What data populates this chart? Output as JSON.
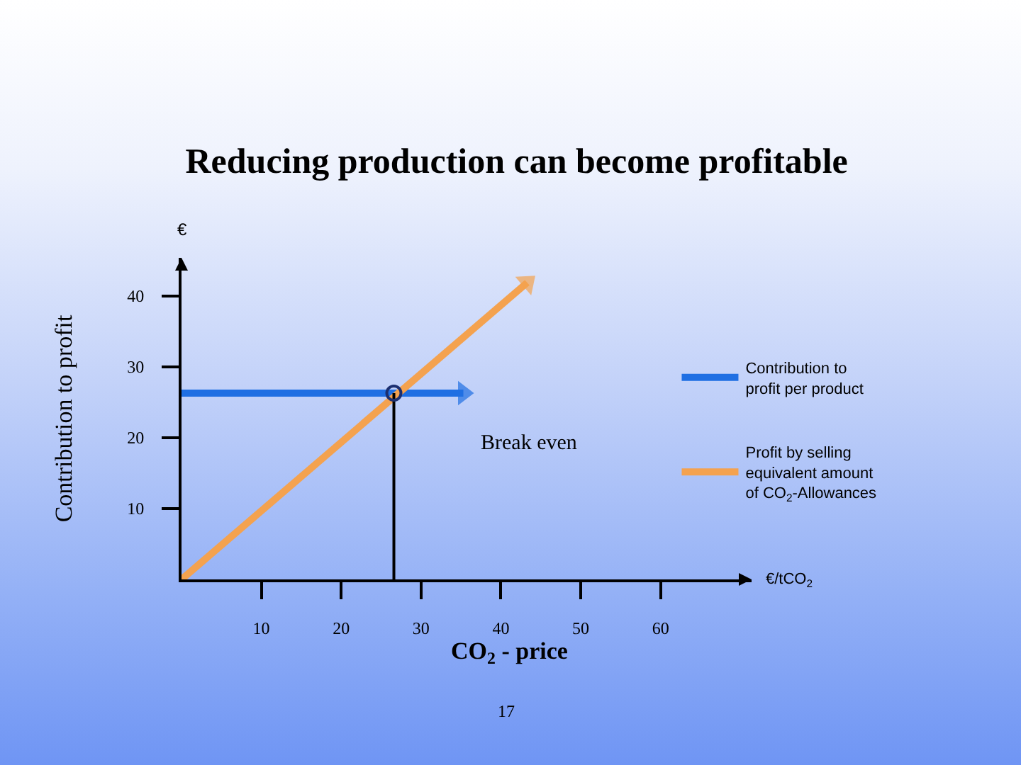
{
  "chart_data": {
    "type": "line",
    "title": "Reducing production can become profitable",
    "xlabel": "CO$_{2}$ - price",
    "ylabel": "Contribution to profit",
    "annotations": [
      "€",
      "€/tCO$_{2}$",
      "Break even",
      "17"
    ],
    "xlim": [
      0,
      71.4
    ],
    "xticks": [
      10,
      20,
      30,
      40,
      50,
      60
    ],
    "ylim": [
      0,
      45.4
    ],
    "yticks": [
      10,
      20,
      30,
      40
    ],
    "grid": false,
    "legend": "right",
    "series": [
      {
        "name": "Contribution to profit per product",
        "color": "#1f6fe3",
        "x": [
          0,
          35.3
        ],
        "values": [
          26.3,
          26.3
        ]
      },
      {
        "name": "Profit by selling equivalent amount of CO$_{2}$-Allowances",
        "color": "#f4a24f",
        "x": [
          0,
          43.3
        ],
        "values": [
          0,
          41.9
        ]
      },
      {
        "color": "#000000",
        "x": [
          26.6,
          26.6
        ],
        "values": [
          0,
          26.3
        ]
      },
      {
        "type": "scatter",
        "color": "#1c2f70",
        "x": [
          26.6
        ],
        "values": [
          26.3
        ],
        "marker": "circle"
      }
    ]
  }
}
